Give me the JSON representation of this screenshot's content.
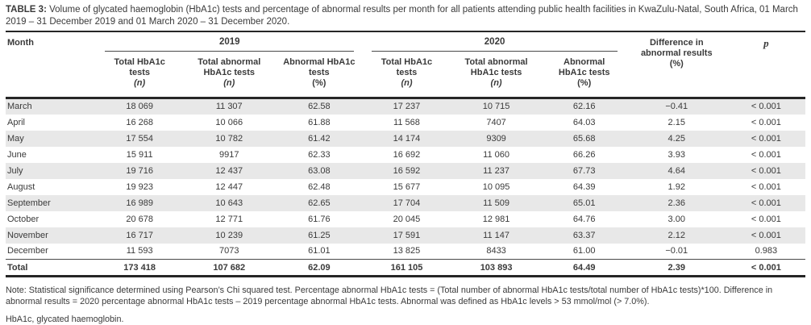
{
  "table": {
    "title_label": "TABLE 3:",
    "title_text": "Volume of glycated haemoglobin (HbA1c) tests and percentage of abnormal results per month for all patients attending public health facilities in KwaZulu-Natal, South Africa, 01 March 2019 – 31 December 2019 and 01 March 2020 – 31 December 2020.",
    "header": {
      "month": "Month",
      "group_2019": "2019",
      "group_2020": "2020",
      "difference": "Difference in abnormal results (%)",
      "p": "p",
      "subcolumns": [
        {
          "title": "Total HbA1c tests",
          "unit": "(n)",
          "italic_unit": true
        },
        {
          "title": "Total abnormal HbA1c tests",
          "unit": "(n)",
          "italic_unit": true
        },
        {
          "title": "Abnormal HbA1c tests",
          "unit": "(%)",
          "italic_unit": false
        },
        {
          "title": "Total HbA1c tests",
          "unit": "(n)",
          "italic_unit": true
        },
        {
          "title": "Total abnormal HbA1c tests",
          "unit": "(n)",
          "italic_unit": true
        },
        {
          "title": "Abnormal HbA1c tests",
          "unit": "(%)",
          "italic_unit": false
        }
      ]
    },
    "rows": [
      {
        "month": "March",
        "values": [
          "18 069",
          "11 307",
          "62.58",
          "17 237",
          "10 715",
          "62.16",
          "−0.41",
          "< 0.001"
        ]
      },
      {
        "month": "April",
        "values": [
          "16 268",
          "10 066",
          "61.88",
          "11 568",
          "7407",
          "64.03",
          "2.15",
          "< 0.001"
        ]
      },
      {
        "month": "May",
        "values": [
          "17 554",
          "10 782",
          "61.42",
          "14 174",
          "9309",
          "65.68",
          "4.25",
          "< 0.001"
        ]
      },
      {
        "month": "June",
        "values": [
          "15 911",
          "9917",
          "62.33",
          "16 692",
          "11 060",
          "66.26",
          "3.93",
          "< 0.001"
        ]
      },
      {
        "month": "July",
        "values": [
          "19 716",
          "12 437",
          "63.08",
          "16 592",
          "11 237",
          "67.73",
          "4.64",
          "< 0.001"
        ]
      },
      {
        "month": "August",
        "values": [
          "19 923",
          "12 447",
          "62.48",
          "15 677",
          "10 095",
          "64.39",
          "1.92",
          "< 0.001"
        ]
      },
      {
        "month": "September",
        "values": [
          "16 989",
          "10 643",
          "62.65",
          "17 704",
          "11 509",
          "65.01",
          "2.36",
          "< 0.001"
        ]
      },
      {
        "month": "October",
        "values": [
          "20 678",
          "12 771",
          "61.76",
          "20 045",
          "12 981",
          "64.76",
          "3.00",
          "< 0.001"
        ]
      },
      {
        "month": "November",
        "values": [
          "16 717",
          "10 239",
          "61.25",
          "17 591",
          "11 147",
          "63.37",
          "2.12",
          "< 0.001"
        ]
      },
      {
        "month": "December",
        "values": [
          "11 593",
          "7073",
          "61.01",
          "13 825",
          "8433",
          "61.00",
          "−0.01",
          "0.983"
        ]
      }
    ],
    "total_row": {
      "month": "Total",
      "values": [
        "173 418",
        "107 682",
        "62.09",
        "161 105",
        "103 893",
        "64.49",
        "2.39",
        "< 0.001"
      ]
    },
    "notes": {
      "note1": "Note: Statistical significance determined using Pearson’s Chi squared test. Percentage abnormal HbA1c tests = (Total number of abnormal HbA1c tests/total number of HbA1c tests)*100. Difference in abnormal results = 2020 percentage abnormal HbA1c tests – 2019 percentage abnormal HbA1c tests. Abnormal was defined as HbA1c levels > 53 mmol/mol (> 7.0%).",
      "note2": "HbA1c, glycated haemoglobin."
    }
  }
}
